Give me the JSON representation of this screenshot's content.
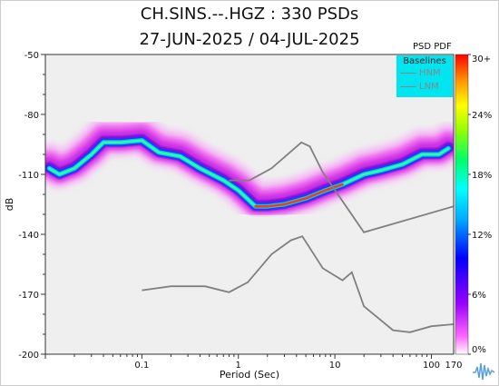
{
  "header": {
    "title_line1": "CH.SINS.--.HGZ : 330 PSDs",
    "title_line2": "27-JUN-2025 / 04-JUL-2025"
  },
  "colorbar": {
    "title": "PSD PDF",
    "ticks": [
      "30+",
      "24%",
      "18%",
      "12%",
      "6%",
      "0%"
    ]
  },
  "legend": {
    "title": "Baselines",
    "items": [
      "HNM",
      "LNM"
    ]
  },
  "chart_data": {
    "type": "heatmap",
    "title": "CH.SINS.--.HGZ : 330 PSDs",
    "subtitle": "27-JUN-2025 / 04-JUL-2025",
    "xlabel": "Period (Sec)",
    "ylabel": "dB",
    "x_scale": "log",
    "xlim": [
      0.01,
      170
    ],
    "ylim": [
      -200,
      -50
    ],
    "x_ticks": [
      "0.1",
      "1",
      "10",
      "100",
      "170"
    ],
    "y_ticks": [
      "-50",
      "-80",
      "-110",
      "-140",
      "-170",
      "-200"
    ],
    "colors": {
      "background": "#efefef",
      "baseline": "#808080",
      "legend_bg": "#00e5f0"
    },
    "series": [
      {
        "name": "HNM",
        "x": [
          0.8,
          1.3,
          2.2,
          4.5,
          5.5,
          7.5,
          20,
          170
        ],
        "y": [
          -113,
          -113,
          -107,
          -94,
          -96,
          -109,
          -139,
          -126
        ]
      },
      {
        "name": "LNM",
        "x": [
          0.1,
          0.2,
          0.45,
          0.8,
          1.25,
          2.2,
          3.5,
          4.6,
          7.5,
          12,
          15,
          20,
          40,
          60,
          100,
          170
        ],
        "y": [
          -168,
          -166,
          -166,
          -169,
          -164,
          -150,
          -143,
          -141,
          -157,
          -163,
          -159,
          -176,
          -188,
          -189,
          -186,
          -185
        ]
      }
    ],
    "mode_trace": {
      "name": "PDF mode",
      "x": [
        0.011,
        0.014,
        0.02,
        0.03,
        0.04,
        0.06,
        0.1,
        0.15,
        0.25,
        0.4,
        0.7,
        1,
        1.5,
        2,
        3,
        5,
        8,
        12,
        20,
        30,
        50,
        80,
        120,
        150
      ],
      "y": [
        -107,
        -110,
        -107,
        -100,
        -94,
        -94,
        -93,
        -99,
        -101,
        -107,
        -113,
        -118,
        -126,
        -126,
        -125,
        -122,
        -118,
        -115,
        -110,
        -108,
        -105,
        -100,
        -100,
        -97
      ]
    }
  }
}
